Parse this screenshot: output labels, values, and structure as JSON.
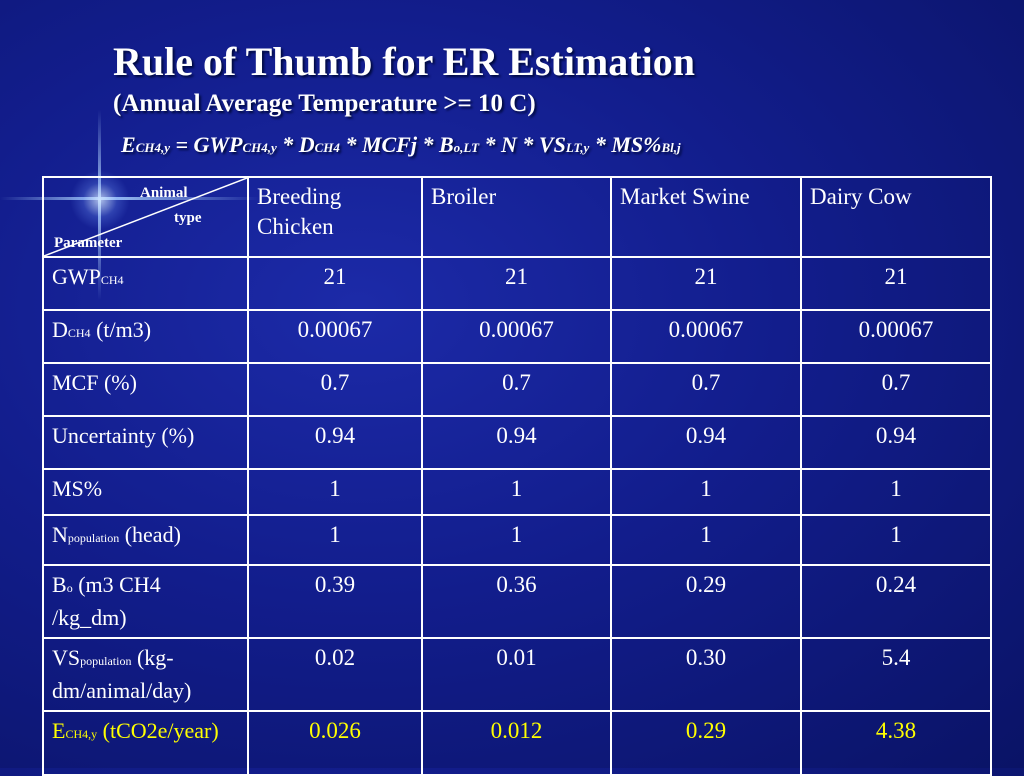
{
  "title": "Rule of Thumb for  ER Estimation",
  "subtitle": "(Annual Average Temperature >= 10 C)",
  "formula": {
    "e": "E",
    "e_sub": "CH4,y",
    "eq_gwp": " = GWP",
    "gwp_sub": "CH4,y",
    "d": " * D",
    "d_sub": "CH4",
    "mcf": " * MCFj * B",
    "b_sub": "o,LT",
    "n_vs": " * N * VS",
    "vs_sub": "LT,y",
    "ms": " * MS%",
    "ms_sub": "Bl,j"
  },
  "table": {
    "corner": {
      "animal": "Animal",
      "type": "type",
      "parameter": "Parameter"
    },
    "columns": [
      "Breeding Chicken",
      "Broiler",
      "Market Swine",
      "Dairy Cow"
    ],
    "rows": [
      {
        "main": "GWP",
        "sub": "CH4",
        "rest": "",
        "values": [
          "21",
          "21",
          "21",
          "21"
        ]
      },
      {
        "main": "D",
        "sub": "CH4",
        "rest": " (t/m3)",
        "values": [
          "0.00067",
          "0.00067",
          "0.00067",
          "0.00067"
        ]
      },
      {
        "main": "MCF (%)",
        "sub": "",
        "rest": "",
        "values": [
          "0.7",
          "0.7",
          "0.7",
          "0.7"
        ]
      },
      {
        "main": "Uncertainty (%)",
        "sub": "",
        "rest": "",
        "values": [
          "0.94",
          "0.94",
          "0.94",
          "0.94"
        ]
      },
      {
        "main": "MS%",
        "sub": "",
        "rest": "",
        "values": [
          "1",
          "1",
          "1",
          "1"
        ]
      },
      {
        "main": "N",
        "sub": "population",
        "rest": " (head)",
        "values": [
          "1",
          "1",
          "1",
          "1"
        ]
      },
      {
        "main": "B",
        "sub": "o",
        "rest": " (m3 CH4 /kg_dm)",
        "values": [
          "0.39",
          "0.36",
          "0.29",
          "0.24"
        ]
      },
      {
        "main": "VS",
        "sub": "population",
        "rest": " (kg-dm/animal/day)",
        "values": [
          "0.02",
          "0.01",
          "0.30",
          "5.4"
        ]
      },
      {
        "main": "E",
        "sub": "CH4,y",
        "rest": " (tCO2e/year)",
        "values": [
          "0.026",
          "0.012",
          "0.29",
          "4.38"
        ]
      }
    ],
    "highlight_color": "#ffff00"
  }
}
